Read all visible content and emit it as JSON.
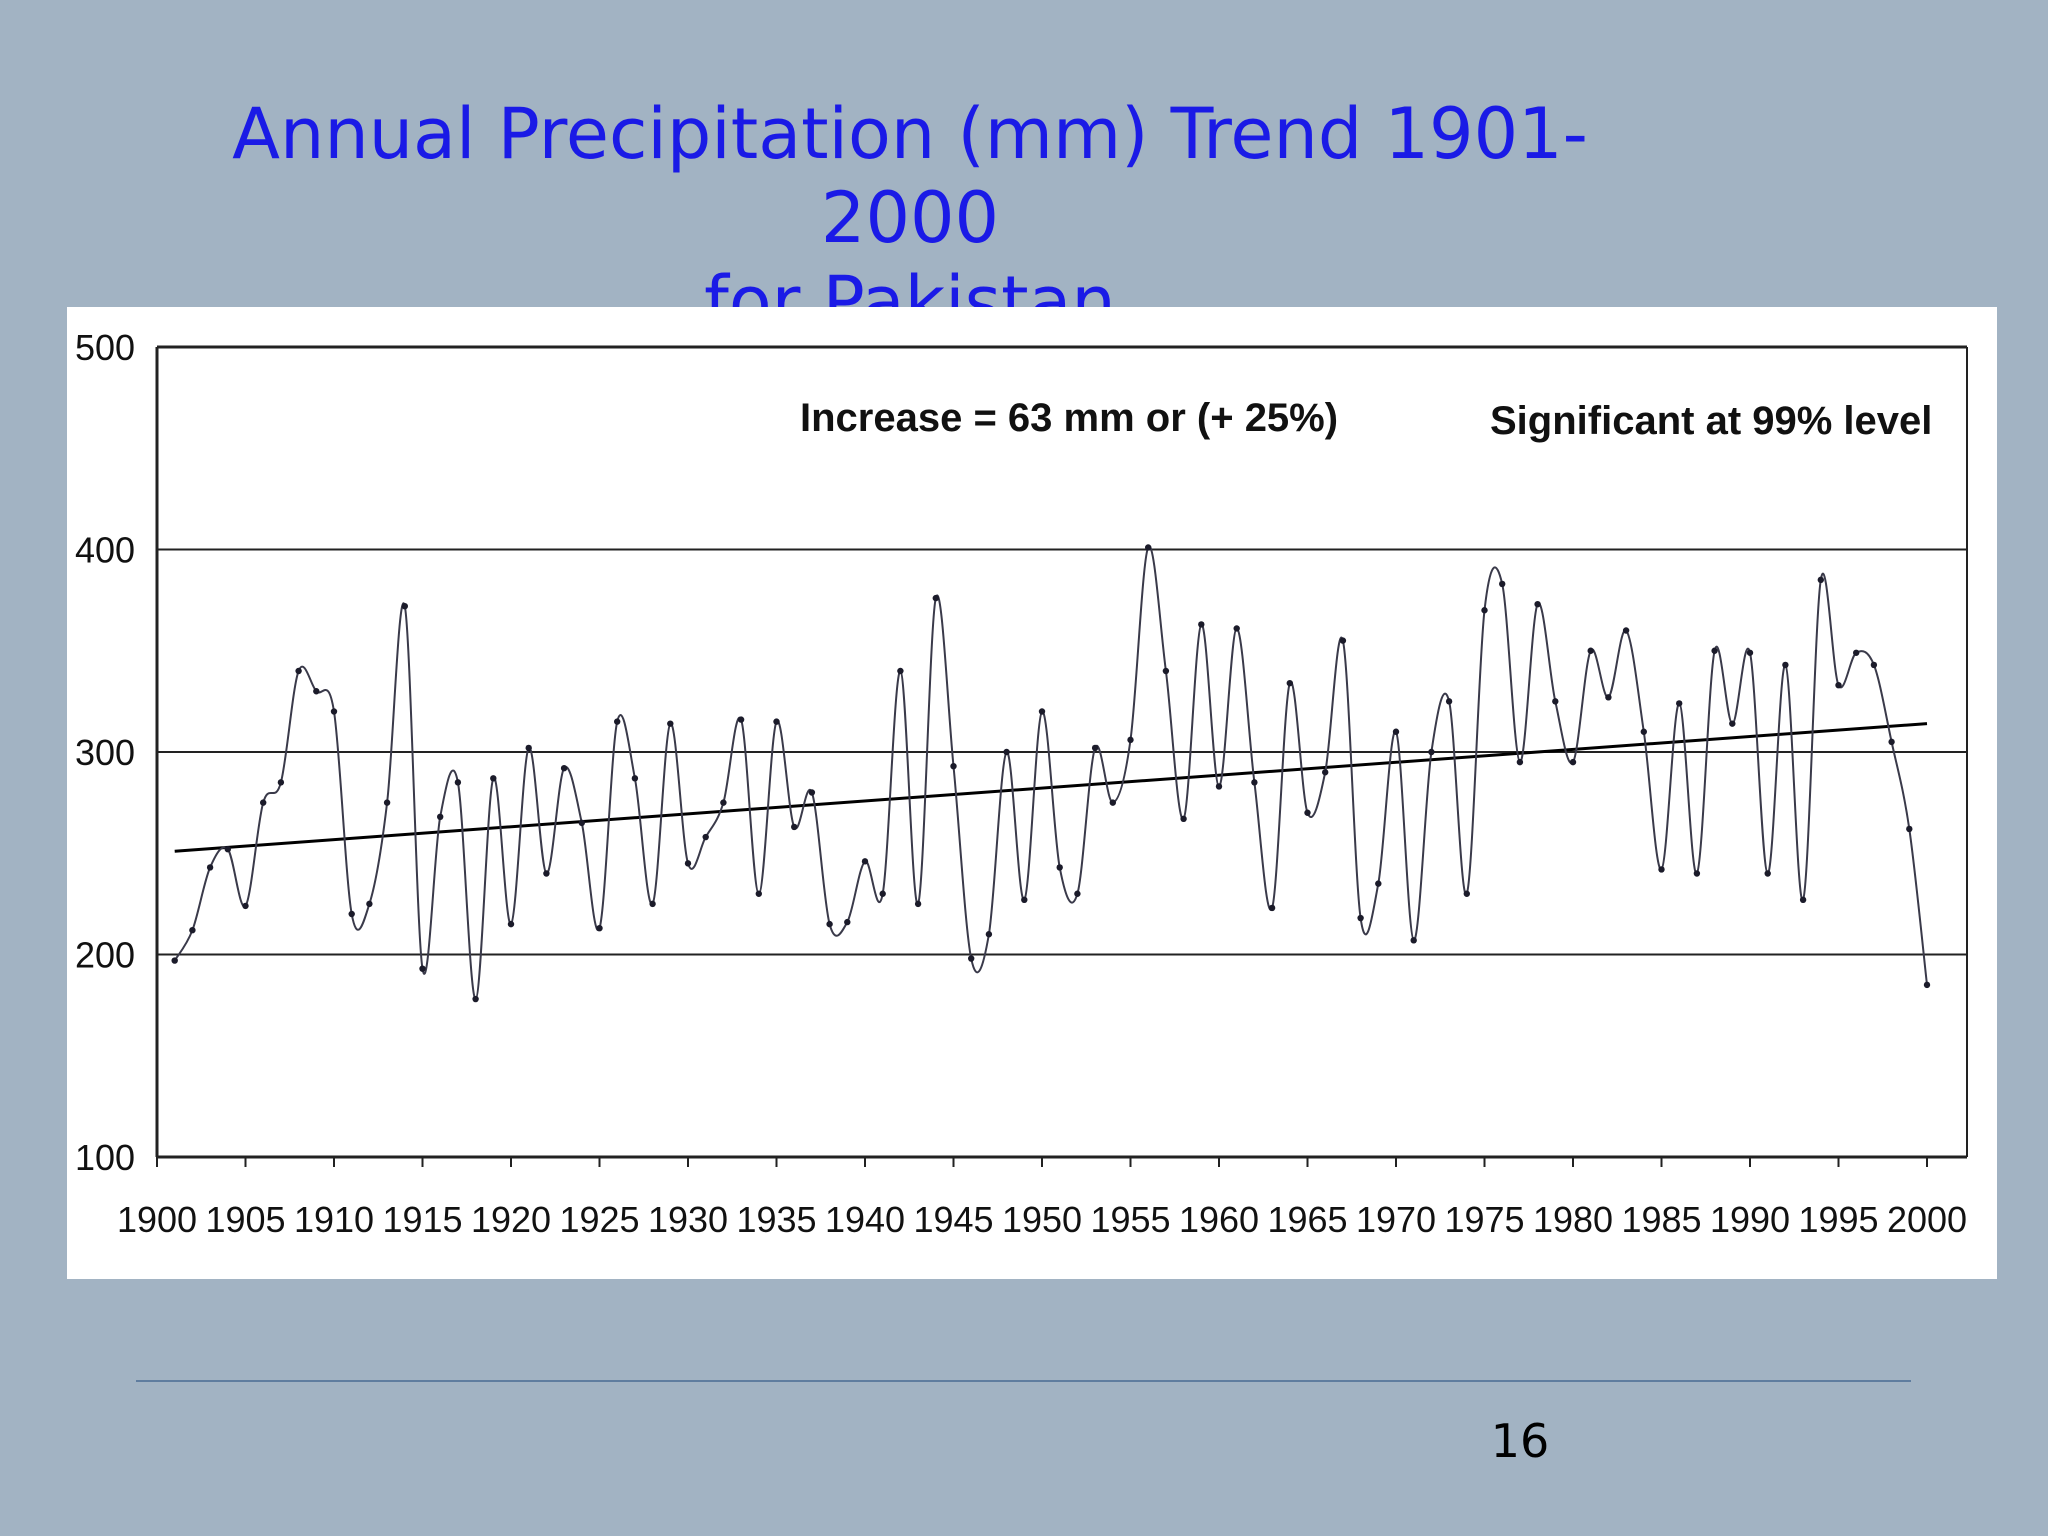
{
  "slide": {
    "title_line1": "Annual Precipitation (mm) Trend 1901-2000",
    "title_line2": "for Pakistan",
    "page_number": "16"
  },
  "chart_data": {
    "type": "line",
    "title": "",
    "xlabel": "",
    "ylabel": "",
    "xlim": [
      1900,
      2000
    ],
    "ylim": [
      100,
      500
    ],
    "x_ticks": [
      1900,
      1905,
      1910,
      1915,
      1920,
      1925,
      1930,
      1935,
      1940,
      1945,
      1950,
      1955,
      1960,
      1965,
      1970,
      1975,
      1980,
      1985,
      1990,
      1995,
      2000
    ],
    "y_ticks": [
      100,
      200,
      300,
      400,
      500
    ],
    "grid": "horizontal",
    "annotations": [
      {
        "text": "Increase = 63 mm or (+ 25%)"
      },
      {
        "text": "Significant at 99% level"
      }
    ],
    "series": [
      {
        "x": [
          1901,
          1902,
          1903,
          1904,
          1905,
          1906,
          1907,
          1908,
          1909,
          1910,
          1911,
          1912,
          1913,
          1914,
          1915,
          1916,
          1917,
          1918,
          1919,
          1920,
          1921,
          1922,
          1923,
          1924,
          1925,
          1926,
          1927,
          1928,
          1929,
          1930,
          1931,
          1932,
          1933,
          1934,
          1935,
          1936,
          1937,
          1938,
          1939,
          1940,
          1941,
          1942,
          1943,
          1944,
          1945,
          1946,
          1947,
          1948,
          1949,
          1950,
          1951,
          1952,
          1953,
          1954,
          1955,
          1956,
          1957,
          1958,
          1959,
          1960,
          1961,
          1962,
          1963,
          1964,
          1965,
          1966,
          1967,
          1968,
          1969,
          1970,
          1971,
          1972,
          1973,
          1974,
          1975,
          1976,
          1977,
          1978,
          1979,
          1980,
          1981,
          1982,
          1983,
          1984,
          1985,
          1986,
          1987,
          1988,
          1989,
          1990,
          1991,
          1992,
          1993,
          1994,
          1995,
          1996,
          1997,
          1998,
          1999,
          2000
        ],
        "values": [
          197,
          212,
          243,
          252,
          224,
          275,
          285,
          340,
          330,
          320,
          220,
          225,
          275,
          372,
          193,
          268,
          285,
          178,
          287,
          215,
          302,
          240,
          292,
          265,
          213,
          315,
          287,
          225,
          314,
          245,
          258,
          275,
          316,
          230,
          315,
          263,
          280,
          215,
          216,
          246,
          230,
          340,
          225,
          376,
          293,
          198,
          210,
          300,
          227,
          320,
          243,
          230,
          302,
          275,
          306,
          401,
          340,
          267,
          363,
          283,
          361,
          285,
          223,
          334,
          270,
          290,
          355,
          218,
          235,
          310,
          207,
          300,
          325,
          230,
          370,
          383,
          295,
          373,
          325,
          295,
          350,
          327,
          360,
          310,
          242,
          324,
          240,
          350,
          314,
          349,
          240,
          343,
          227,
          385,
          333,
          349,
          343,
          305,
          262,
          185
        ]
      },
      {
        "name": "",
        "type": "trend",
        "x": [
          1901,
          2000
        ],
        "values": [
          251,
          314
        ]
      }
    ]
  }
}
